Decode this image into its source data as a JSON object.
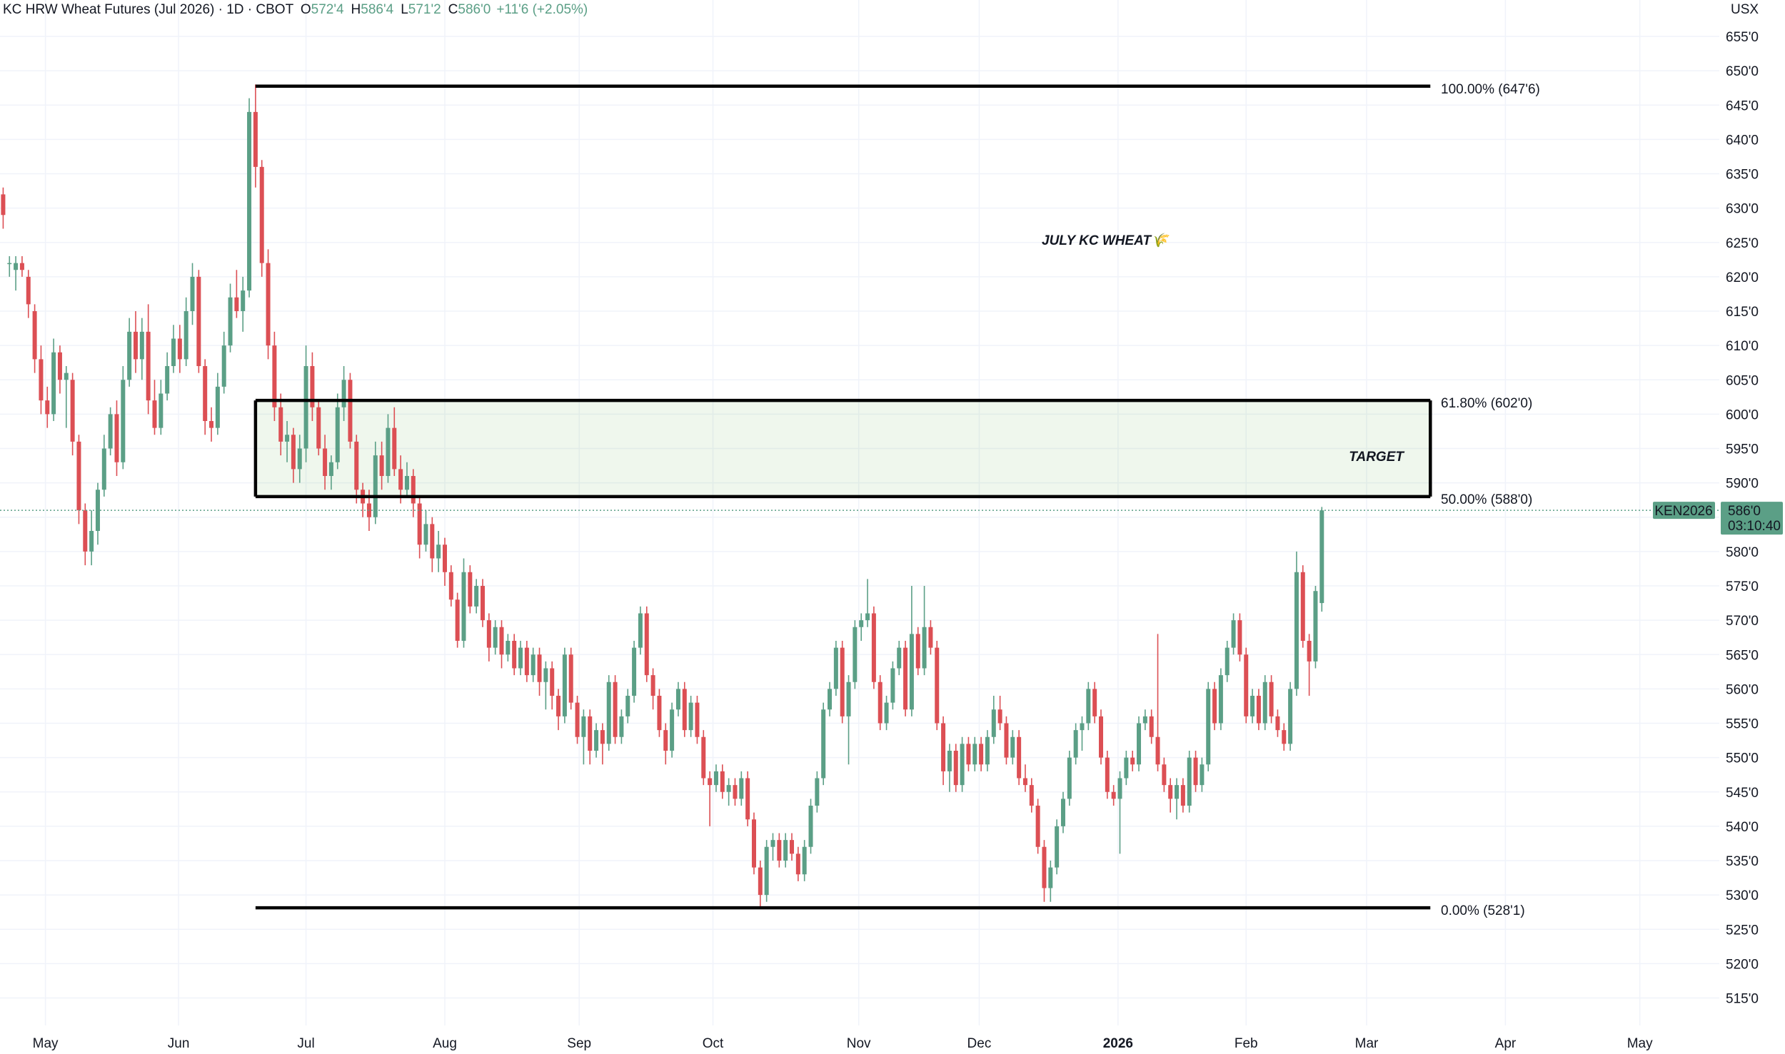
{
  "chart_data": {
    "type": "candlestick",
    "title": "JULY KC WHEAT🌾",
    "header": {
      "name": "KC HRW Wheat Futures (Jul 2026) · 1D · CBOT",
      "fields": [
        {
          "key": "O",
          "value": "572'4"
        },
        {
          "key": "H",
          "value": "586'4"
        },
        {
          "key": "L",
          "value": "571'2"
        },
        {
          "key": "C",
          "value": "586'0"
        }
      ],
      "change": "+11'6 (+2.05%)"
    },
    "currency": "USX",
    "up_color": "#5b9f86",
    "down_color": "#dc4f54",
    "grid": true,
    "candles": [
      [
        632,
        633,
        627,
        629
      ],
      [
        622,
        623,
        620,
        622
      ],
      [
        621,
        623,
        618,
        622
      ],
      [
        622,
        623,
        620,
        621
      ],
      [
        620,
        621,
        614,
        616
      ],
      [
        615,
        616,
        606,
        608
      ],
      [
        608,
        610,
        600,
        602
      ],
      [
        602,
        604,
        598,
        600
      ],
      [
        600,
        611,
        599,
        609
      ],
      [
        609,
        610,
        603,
        605
      ],
      [
        605,
        607,
        598,
        606
      ],
      [
        605,
        606,
        594,
        596
      ],
      [
        596,
        597,
        584,
        586
      ],
      [
        586,
        587,
        578,
        580
      ],
      [
        580,
        586,
        578,
        583
      ],
      [
        583,
        590,
        581,
        589
      ],
      [
        589,
        597,
        588,
        595
      ],
      [
        595,
        601,
        594,
        600
      ],
      [
        600,
        602,
        591,
        593
      ],
      [
        593,
        607,
        592,
        605
      ],
      [
        605,
        614,
        604,
        612
      ],
      [
        612,
        615,
        606,
        608
      ],
      [
        608,
        614,
        605,
        612
      ],
      [
        612,
        616,
        600,
        602
      ],
      [
        602,
        605,
        597,
        598
      ],
      [
        598,
        605,
        597,
        603
      ],
      [
        603,
        609,
        602,
        607
      ],
      [
        607,
        613,
        606,
        611
      ],
      [
        611,
        613,
        606,
        608
      ],
      [
        608,
        617,
        607,
        615
      ],
      [
        615,
        622,
        613,
        620
      ],
      [
        620,
        621,
        606,
        607
      ],
      [
        607,
        608,
        597,
        599
      ],
      [
        599,
        601,
        596,
        598
      ],
      [
        598,
        606,
        597,
        604
      ],
      [
        604,
        612,
        603,
        610
      ],
      [
        610,
        619,
        609,
        617
      ],
      [
        617,
        621,
        614,
        615
      ],
      [
        615,
        620,
        612,
        618
      ],
      [
        618,
        646,
        617,
        644
      ],
      [
        644,
        648,
        633,
        636
      ],
      [
        636,
        637,
        620,
        622
      ],
      [
        622,
        624,
        608,
        610
      ],
      [
        610,
        612,
        599,
        601
      ],
      [
        601,
        603,
        594,
        596
      ],
      [
        596,
        599,
        593,
        597
      ],
      [
        597,
        598,
        590,
        592
      ],
      [
        592,
        597,
        590,
        595
      ],
      [
        595,
        610,
        593,
        607
      ],
      [
        607,
        609,
        599,
        601
      ],
      [
        601,
        602,
        594,
        595
      ],
      [
        595,
        597,
        589,
        591
      ],
      [
        591,
        594,
        589,
        593
      ],
      [
        593,
        603,
        592,
        601
      ],
      [
        601,
        607,
        599,
        605
      ],
      [
        605,
        606,
        595,
        596
      ],
      [
        596,
        597,
        587,
        589
      ],
      [
        589,
        590,
        585,
        587
      ],
      [
        587,
        589,
        583,
        585
      ],
      [
        585,
        596,
        584,
        594
      ],
      [
        594,
        596,
        589,
        591
      ],
      [
        591,
        600,
        590,
        598
      ],
      [
        598,
        601,
        591,
        592
      ],
      [
        592,
        594,
        587,
        589
      ],
      [
        589,
        593,
        588,
        591
      ],
      [
        591,
        592,
        585,
        587
      ],
      [
        587,
        588,
        579,
        581
      ],
      [
        581,
        586,
        580,
        584
      ],
      [
        584,
        585,
        577,
        579
      ],
      [
        579,
        583,
        577,
        581
      ],
      [
        581,
        582,
        575,
        577
      ],
      [
        577,
        578,
        572,
        573
      ],
      [
        573,
        574,
        566,
        567
      ],
      [
        567,
        579,
        566,
        577
      ],
      [
        577,
        578,
        571,
        572
      ],
      [
        572,
        576,
        571,
        575
      ],
      [
        575,
        576,
        569,
        570
      ],
      [
        570,
        571,
        564,
        566
      ],
      [
        566,
        570,
        565,
        569
      ],
      [
        569,
        570,
        563,
        565
      ],
      [
        565,
        568,
        564,
        567
      ],
      [
        567,
        568,
        562,
        563
      ],
      [
        563,
        567,
        562,
        566
      ],
      [
        566,
        567,
        561,
        562
      ],
      [
        562,
        566,
        561,
        565
      ],
      [
        565,
        566,
        559,
        561
      ],
      [
        561,
        564,
        557,
        563
      ],
      [
        563,
        564,
        557,
        559
      ],
      [
        559,
        560,
        554,
        556
      ],
      [
        556,
        566,
        555,
        565
      ],
      [
        565,
        566,
        557,
        558
      ],
      [
        558,
        559,
        552,
        553
      ],
      [
        553,
        557,
        549,
        556
      ],
      [
        556,
        557,
        549,
        551
      ],
      [
        551,
        555,
        550,
        554
      ],
      [
        554,
        555,
        549,
        552
      ],
      [
        552,
        562,
        551,
        561
      ],
      [
        561,
        562,
        552,
        553
      ],
      [
        553,
        557,
        552,
        556
      ],
      [
        556,
        560,
        555,
        559
      ],
      [
        559,
        567,
        558,
        566
      ],
      [
        566,
        572,
        565,
        571
      ],
      [
        571,
        572,
        561,
        562
      ],
      [
        562,
        563,
        557,
        559
      ],
      [
        559,
        560,
        553,
        554
      ],
      [
        554,
        555,
        549,
        551
      ],
      [
        551,
        558,
        550,
        557
      ],
      [
        557,
        561,
        556,
        560
      ],
      [
        560,
        561,
        553,
        554
      ],
      [
        554,
        559,
        553,
        558
      ],
      [
        558,
        559,
        552,
        553
      ],
      [
        553,
        554,
        546,
        547
      ],
      [
        547,
        548,
        540,
        546
      ],
      [
        546,
        549,
        545,
        548
      ],
      [
        548,
        549,
        544,
        545
      ],
      [
        545,
        547,
        543,
        546
      ],
      [
        546,
        547,
        543,
        544
      ],
      [
        544,
        548,
        543,
        547
      ],
      [
        547,
        548,
        540,
        541
      ],
      [
        541,
        542,
        533,
        534
      ],
      [
        534,
        535,
        528.25,
        530
      ],
      [
        530,
        538,
        529,
        537
      ],
      [
        537,
        539,
        535,
        538
      ],
      [
        538,
        539,
        534,
        535
      ],
      [
        535,
        539,
        534,
        538
      ],
      [
        538,
        539,
        535,
        536
      ],
      [
        536,
        537,
        532,
        533
      ],
      [
        533,
        538,
        532,
        537
      ],
      [
        537,
        544,
        536,
        543
      ],
      [
        543,
        548,
        542,
        547
      ],
      [
        547,
        558,
        546,
        557
      ],
      [
        557,
        561,
        556,
        560
      ],
      [
        560,
        567,
        559,
        566
      ],
      [
        566,
        567,
        555,
        556
      ],
      [
        556,
        562,
        549,
        561
      ],
      [
        561,
        570,
        560,
        569
      ],
      [
        569,
        571,
        567,
        570
      ],
      [
        570,
        576,
        569,
        571
      ],
      [
        571,
        572,
        560,
        561
      ],
      [
        561,
        562,
        554,
        555
      ],
      [
        555,
        559,
        554,
        558
      ],
      [
        558,
        564,
        557,
        563
      ],
      [
        563,
        567,
        562,
        566
      ],
      [
        566,
        567,
        556,
        557
      ],
      [
        557,
        575,
        556,
        568
      ],
      [
        568,
        569,
        562,
        563
      ],
      [
        563,
        575,
        562,
        569
      ],
      [
        569,
        570,
        565,
        566
      ],
      [
        566,
        567,
        554,
        555
      ],
      [
        555,
        556,
        546,
        548
      ],
      [
        548,
        552,
        545,
        551
      ],
      [
        551,
        552,
        545,
        546
      ],
      [
        546,
        553,
        545,
        552
      ],
      [
        552,
        553,
        548,
        549
      ],
      [
        549,
        553,
        548,
        552
      ],
      [
        552,
        553,
        548,
        549
      ],
      [
        549,
        554,
        548,
        553
      ],
      [
        553,
        559,
        552,
        557
      ],
      [
        557,
        559,
        554,
        555
      ],
      [
        555,
        556,
        549,
        550
      ],
      [
        550,
        554,
        549,
        553
      ],
      [
        553,
        554,
        546,
        547
      ],
      [
        547,
        549,
        545,
        546
      ],
      [
        546,
        547,
        542,
        543
      ],
      [
        543,
        544,
        536,
        537
      ],
      [
        537,
        538,
        529,
        531
      ],
      [
        531,
        535,
        529,
        534
      ],
      [
        534,
        541,
        533,
        540
      ],
      [
        540,
        545,
        539,
        544
      ],
      [
        544,
        551,
        543,
        550
      ],
      [
        550,
        555,
        549,
        554
      ],
      [
        554,
        556,
        551,
        555
      ],
      [
        555,
        561,
        554,
        560
      ],
      [
        560,
        561,
        555,
        556
      ],
      [
        556,
        557,
        549,
        550
      ],
      [
        550,
        551,
        544,
        545
      ],
      [
        545,
        546,
        543,
        544
      ],
      [
        544,
        548,
        536,
        547
      ],
      [
        547,
        551,
        546,
        550
      ],
      [
        550,
        551,
        548,
        549
      ],
      [
        549,
        556,
        548,
        555
      ],
      [
        555,
        557,
        554,
        556
      ],
      [
        556,
        557,
        552,
        553
      ],
      [
        553,
        568,
        548,
        549
      ],
      [
        549,
        550,
        545,
        546
      ],
      [
        546,
        547,
        542,
        544
      ],
      [
        544,
        547,
        541,
        546
      ],
      [
        546,
        547,
        542,
        543
      ],
      [
        543,
        551,
        542,
        550
      ],
      [
        550,
        551,
        545,
        546
      ],
      [
        546,
        550,
        545,
        549
      ],
      [
        549,
        561,
        548,
        560
      ],
      [
        560,
        561,
        554,
        555
      ],
      [
        555,
        563,
        554,
        562
      ],
      [
        562,
        567,
        561,
        566
      ],
      [
        566,
        571,
        565,
        570
      ],
      [
        570,
        571,
        564,
        565
      ],
      [
        565,
        566,
        555,
        556
      ],
      [
        556,
        560,
        555,
        559
      ],
      [
        559,
        560,
        554,
        555
      ],
      [
        555,
        562,
        554,
        561
      ],
      [
        561,
        562,
        555,
        556
      ],
      [
        556,
        557,
        553,
        554
      ],
      [
        554,
        555,
        551,
        552
      ],
      [
        552,
        561,
        551,
        560
      ],
      [
        560,
        580,
        559,
        577
      ],
      [
        577,
        578,
        566,
        567
      ],
      [
        567,
        568,
        559,
        564
      ],
      [
        564,
        575,
        563,
        574.25
      ],
      [
        572.5,
        586.5,
        571.25,
        586
      ]
    ],
    "xlim": [
      -0.5,
      272
    ],
    "xticks": [
      {
        "value": 6.7,
        "label": "May"
      },
      {
        "value": 27.8,
        "label": "Jun"
      },
      {
        "value": 48,
        "label": "Jul"
      },
      {
        "value": 70,
        "label": "Aug"
      },
      {
        "value": 91.3,
        "label": "Sep"
      },
      {
        "value": 112.5,
        "label": "Oct"
      },
      {
        "value": 135.6,
        "label": "Nov"
      },
      {
        "value": 154.7,
        "label": "Dec"
      },
      {
        "value": 176.7,
        "label": "2026"
      },
      {
        "value": 197,
        "label": "Feb"
      },
      {
        "value": 216.1,
        "label": "Mar"
      },
      {
        "value": 238.1,
        "label": "Apr"
      },
      {
        "value": 259.4,
        "label": "May"
      }
    ],
    "ylim": [
      511,
      660.3
    ],
    "yticks": [
      {
        "value": 515,
        "label": "515'0"
      },
      {
        "value": 520,
        "label": "520'0"
      },
      {
        "value": 525,
        "label": "525'0"
      },
      {
        "value": 530,
        "label": "530'0"
      },
      {
        "value": 535,
        "label": "535'0"
      },
      {
        "value": 540,
        "label": "540'0"
      },
      {
        "value": 545,
        "label": "545'0"
      },
      {
        "value": 550,
        "label": "550'0"
      },
      {
        "value": 555,
        "label": "555'0"
      },
      {
        "value": 560,
        "label": "560'0"
      },
      {
        "value": 565,
        "label": "565'0"
      },
      {
        "value": 570,
        "label": "570'0"
      },
      {
        "value": 575,
        "label": "575'0"
      },
      {
        "value": 580,
        "label": "580'0"
      },
      {
        "value": 585,
        "label": "585'0"
      },
      {
        "value": 590,
        "label": "590'0"
      },
      {
        "value": 595,
        "label": "595'0"
      },
      {
        "value": 600,
        "label": "600'0"
      },
      {
        "value": 605,
        "label": "605'0"
      },
      {
        "value": 610,
        "label": "610'0"
      },
      {
        "value": 615,
        "label": "615'0"
      },
      {
        "value": 620,
        "label": "620'0"
      },
      {
        "value": 625,
        "label": "625'0"
      },
      {
        "value": 630,
        "label": "630'0"
      },
      {
        "value": 635,
        "label": "635'0"
      },
      {
        "value": 640,
        "label": "640'0"
      },
      {
        "value": 645,
        "label": "645'0"
      },
      {
        "value": 650,
        "label": "650'0"
      },
      {
        "value": 655,
        "label": "655'0"
      }
    ],
    "fib_x": [
      40,
      226.2
    ],
    "fib_levels": [
      {
        "value": 647.75,
        "label": "100.00% (647'6)"
      },
      {
        "value": 602,
        "label": "61.80% (602'0)"
      },
      {
        "value": 588,
        "label": "50.00% (588'0)"
      },
      {
        "value": 528.125,
        "label": "0.00% (528'1)"
      }
    ],
    "target_label": "TARGET",
    "price_tag": {
      "symbol": "KEN2026",
      "price": "586'0",
      "countdown": "03:10:40"
    }
  }
}
